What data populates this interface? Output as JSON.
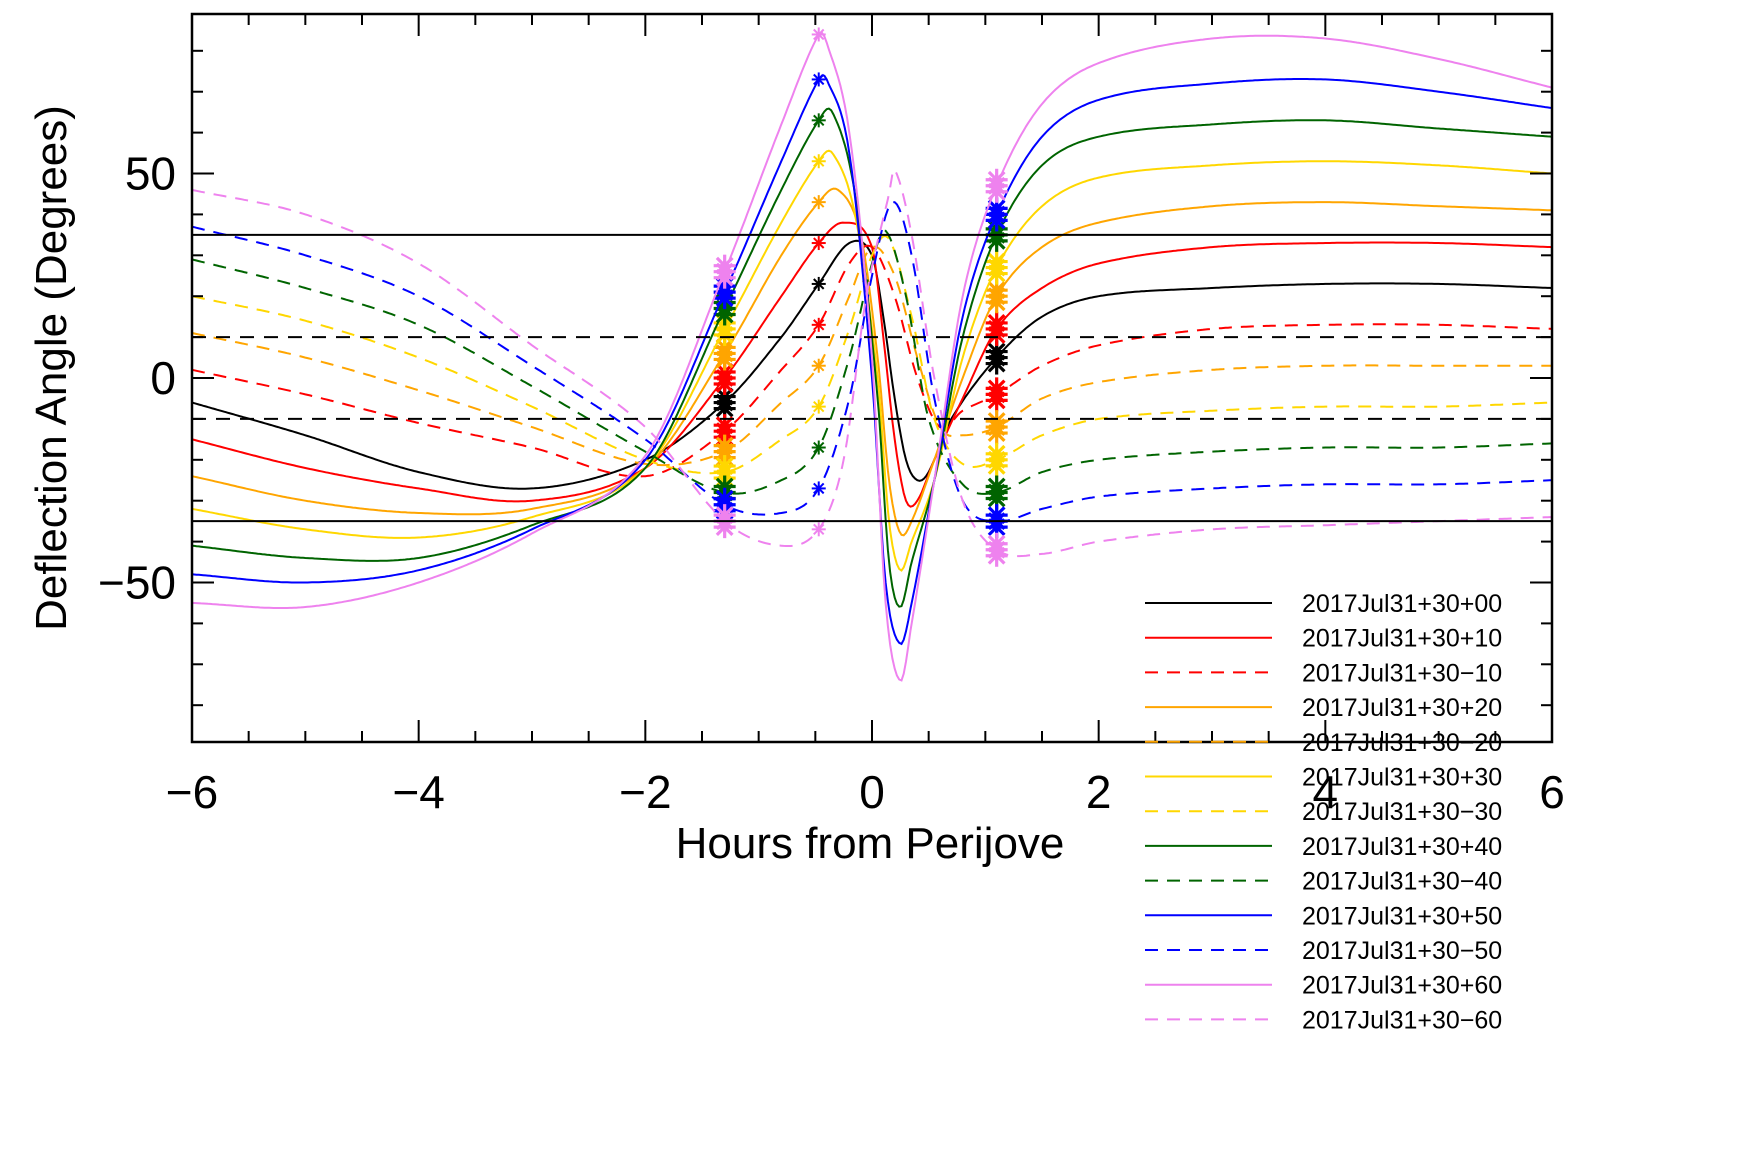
{
  "chart_data": {
    "type": "line",
    "title": "",
    "xlabel": "Hours from Perijove",
    "ylabel": "Deflection Angle (Degrees)",
    "xlim": [
      -6,
      6
    ],
    "ylim": [
      -89,
      89
    ],
    "xticks": [
      -6,
      -4,
      -2,
      0,
      2,
      4,
      6
    ],
    "xtick_labels": [
      "−6",
      "−4",
      "−2",
      "0",
      "2",
      "4",
      "6"
    ],
    "yticks": [
      -50,
      0,
      50
    ],
    "ytick_labels": [
      "−50",
      "0",
      "50"
    ],
    "grid": false,
    "legend_position": "bottom-right",
    "reference_lines": [
      {
        "y": 35,
        "style": "solid",
        "color": "#000000"
      },
      {
        "y": -35,
        "style": "solid",
        "color": "#000000"
      },
      {
        "y": 10,
        "style": "dashed",
        "color": "#000000"
      },
      {
        "y": -10,
        "style": "dashed",
        "color": "#000000"
      }
    ],
    "marker_times": [
      -1.3,
      -0.47,
      1.1
    ],
    "series": [
      {
        "name": "2017Jul31+30+00",
        "color": "#000000",
        "dash": false,
        "points": [
          [
            -6,
            -6
          ],
          [
            -5,
            -14
          ],
          [
            -4,
            -23
          ],
          [
            -3,
            -27
          ],
          [
            -2,
            -20
          ],
          [
            -1.3,
            -6
          ],
          [
            -0.8,
            10
          ],
          [
            -0.47,
            23
          ],
          [
            -0.2,
            33
          ],
          [
            0,
            30
          ],
          [
            0.1,
            15
          ],
          [
            0.2,
            -5
          ],
          [
            0.3,
            -20
          ],
          [
            0.4,
            -25
          ],
          [
            0.5,
            -23
          ],
          [
            0.7,
            -10
          ],
          [
            1.1,
            5
          ],
          [
            1.5,
            15
          ],
          [
            2,
            20
          ],
          [
            3,
            22
          ],
          [
            4,
            23
          ],
          [
            5,
            23
          ],
          [
            6,
            22
          ]
        ]
      },
      {
        "name": "2017Jul31+30+10",
        "color": "#ff0000",
        "dash": false,
        "points": [
          [
            -6,
            -15
          ],
          [
            -5,
            -22
          ],
          [
            -4,
            -27
          ],
          [
            -3,
            -30
          ],
          [
            -2,
            -22
          ],
          [
            -1.3,
            0
          ],
          [
            -0.8,
            20
          ],
          [
            -0.47,
            33
          ],
          [
            -0.25,
            38
          ],
          [
            0,
            32
          ],
          [
            0.1,
            10
          ],
          [
            0.2,
            -15
          ],
          [
            0.3,
            -30
          ],
          [
            0.4,
            -30
          ],
          [
            0.55,
            -20
          ],
          [
            0.8,
            -5
          ],
          [
            1.1,
            12
          ],
          [
            1.5,
            22
          ],
          [
            2,
            28
          ],
          [
            3,
            32
          ],
          [
            4,
            33
          ],
          [
            5,
            33
          ],
          [
            6,
            32
          ]
        ]
      },
      {
        "name": "2017Jul31+30−10",
        "color": "#ff0000",
        "dash": true,
        "points": [
          [
            -6,
            2
          ],
          [
            -5,
            -4
          ],
          [
            -4,
            -11
          ],
          [
            -3,
            -17
          ],
          [
            -2,
            -24
          ],
          [
            -1.3,
            -13
          ],
          [
            -0.8,
            2
          ],
          [
            -0.47,
            13
          ],
          [
            -0.2,
            28
          ],
          [
            0,
            32
          ],
          [
            0.2,
            20
          ],
          [
            0.4,
            0
          ],
          [
            0.6,
            -12
          ],
          [
            0.8,
            -8
          ],
          [
            1.1,
            -4
          ],
          [
            1.5,
            3
          ],
          [
            2,
            8
          ],
          [
            3,
            12
          ],
          [
            4,
            13
          ],
          [
            5,
            13
          ],
          [
            6,
            12
          ]
        ]
      },
      {
        "name": "2017Jul31+30+20",
        "color": "#ffa500",
        "dash": false,
        "points": [
          [
            -6,
            -24
          ],
          [
            -5,
            -30
          ],
          [
            -4,
            -33
          ],
          [
            -3,
            -32
          ],
          [
            -2,
            -22
          ],
          [
            -1.3,
            6
          ],
          [
            -0.8,
            30
          ],
          [
            -0.47,
            43
          ],
          [
            -0.3,
            46
          ],
          [
            -0.1,
            35
          ],
          [
            0.05,
            5
          ],
          [
            0.15,
            -25
          ],
          [
            0.25,
            -38
          ],
          [
            0.35,
            -35
          ],
          [
            0.55,
            -20
          ],
          [
            0.8,
            0
          ],
          [
            1.1,
            20
          ],
          [
            1.5,
            32
          ],
          [
            2,
            38
          ],
          [
            3,
            42
          ],
          [
            4,
            43
          ],
          [
            5,
            42
          ],
          [
            6,
            41
          ]
        ]
      },
      {
        "name": "2017Jul31+30−20",
        "color": "#ffa500",
        "dash": true,
        "points": [
          [
            -6,
            11
          ],
          [
            -5,
            5
          ],
          [
            -4,
            -3
          ],
          [
            -3,
            -12
          ],
          [
            -2,
            -21
          ],
          [
            -1.3,
            -18
          ],
          [
            -0.8,
            -6
          ],
          [
            -0.47,
            3
          ],
          [
            -0.2,
            20
          ],
          [
            0,
            32
          ],
          [
            0.2,
            25
          ],
          [
            0.4,
            5
          ],
          [
            0.6,
            -12
          ],
          [
            0.8,
            -14
          ],
          [
            1.1,
            -12
          ],
          [
            1.5,
            -5
          ],
          [
            2,
            -1
          ],
          [
            3,
            2
          ],
          [
            4,
            3
          ],
          [
            5,
            3
          ],
          [
            6,
            3
          ]
        ]
      },
      {
        "name": "2017Jul31+30+30",
        "color": "#ffd700",
        "dash": false,
        "points": [
          [
            -6,
            -32
          ],
          [
            -5,
            -37
          ],
          [
            -4,
            -39
          ],
          [
            -3,
            -34
          ],
          [
            -2,
            -22
          ],
          [
            -1.3,
            12
          ],
          [
            -0.8,
            38
          ],
          [
            -0.47,
            53
          ],
          [
            -0.35,
            55
          ],
          [
            -0.15,
            40
          ],
          [
            0.05,
            0
          ],
          [
            0.15,
            -35
          ],
          [
            0.25,
            -47
          ],
          [
            0.35,
            -40
          ],
          [
            0.55,
            -25
          ],
          [
            0.8,
            5
          ],
          [
            1.1,
            27
          ],
          [
            1.5,
            42
          ],
          [
            2,
            49
          ],
          [
            3,
            52
          ],
          [
            4,
            53
          ],
          [
            5,
            52
          ],
          [
            6,
            50
          ]
        ]
      },
      {
        "name": "2017Jul31+30−30",
        "color": "#ffd700",
        "dash": true,
        "points": [
          [
            -6,
            20
          ],
          [
            -5,
            14
          ],
          [
            -4,
            5
          ],
          [
            -3,
            -7
          ],
          [
            -2,
            -20
          ],
          [
            -1.3,
            -23
          ],
          [
            -0.8,
            -15
          ],
          [
            -0.47,
            -7
          ],
          [
            -0.2,
            12
          ],
          [
            0,
            30
          ],
          [
            0.15,
            34
          ],
          [
            0.35,
            15
          ],
          [
            0.55,
            -10
          ],
          [
            0.8,
            -21
          ],
          [
            1.1,
            -20
          ],
          [
            1.5,
            -14
          ],
          [
            2,
            -10
          ],
          [
            3,
            -8
          ],
          [
            4,
            -7
          ],
          [
            5,
            -7
          ],
          [
            6,
            -6
          ]
        ]
      },
      {
        "name": "2017Jul31+30+40",
        "color": "#006400",
        "dash": false,
        "points": [
          [
            -6,
            -41
          ],
          [
            -5,
            -44
          ],
          [
            -4,
            -44
          ],
          [
            -3,
            -36
          ],
          [
            -2,
            -22
          ],
          [
            -1.3,
            17
          ],
          [
            -0.8,
            46
          ],
          [
            -0.47,
            63
          ],
          [
            -0.35,
            65
          ],
          [
            -0.15,
            45
          ],
          [
            0.05,
            -5
          ],
          [
            0.15,
            -45
          ],
          [
            0.25,
            -56
          ],
          [
            0.35,
            -45
          ],
          [
            0.55,
            -25
          ],
          [
            0.8,
            10
          ],
          [
            1.1,
            35
          ],
          [
            1.5,
            52
          ],
          [
            2,
            59
          ],
          [
            3,
            62
          ],
          [
            4,
            63
          ],
          [
            5,
            61
          ],
          [
            6,
            59
          ]
        ]
      },
      {
        "name": "2017Jul31+30−40",
        "color": "#006400",
        "dash": true,
        "points": [
          [
            -6,
            29
          ],
          [
            -5,
            22
          ],
          [
            -4,
            13
          ],
          [
            -3,
            -2
          ],
          [
            -2,
            -18
          ],
          [
            -1.3,
            -28
          ],
          [
            -0.8,
            -25
          ],
          [
            -0.47,
            -17
          ],
          [
            -0.2,
            5
          ],
          [
            0,
            28
          ],
          [
            0.12,
            36
          ],
          [
            0.3,
            20
          ],
          [
            0.5,
            -10
          ],
          [
            0.8,
            -26
          ],
          [
            1.1,
            -28
          ],
          [
            1.5,
            -23
          ],
          [
            2,
            -20
          ],
          [
            3,
            -18
          ],
          [
            4,
            -17
          ],
          [
            5,
            -17
          ],
          [
            6,
            -16
          ]
        ]
      },
      {
        "name": "2017Jul31+30+50",
        "color": "#0000ff",
        "dash": false,
        "points": [
          [
            -6,
            -48
          ],
          [
            -5,
            -50
          ],
          [
            -4,
            -47
          ],
          [
            -3,
            -37
          ],
          [
            -2,
            -20
          ],
          [
            -1.3,
            21
          ],
          [
            -0.8,
            53
          ],
          [
            -0.47,
            73
          ],
          [
            -0.4,
            73
          ],
          [
            -0.2,
            55
          ],
          [
            0,
            0
          ],
          [
            0.12,
            -50
          ],
          [
            0.25,
            -65
          ],
          [
            0.35,
            -55
          ],
          [
            0.55,
            -25
          ],
          [
            0.8,
            15
          ],
          [
            1.1,
            40
          ],
          [
            1.5,
            59
          ],
          [
            2,
            68
          ],
          [
            3,
            72
          ],
          [
            4,
            73
          ],
          [
            5,
            70
          ],
          [
            6,
            66
          ]
        ]
      },
      {
        "name": "2017Jul31+30−50",
        "color": "#0000ff",
        "dash": true,
        "points": [
          [
            -6,
            37
          ],
          [
            -5,
            30
          ],
          [
            -4,
            20
          ],
          [
            -3,
            3
          ],
          [
            -2,
            -15
          ],
          [
            -1.3,
            -31
          ],
          [
            -0.8,
            -33
          ],
          [
            -0.47,
            -27
          ],
          [
            -0.2,
            -5
          ],
          [
            0,
            25
          ],
          [
            0.18,
            43
          ],
          [
            0.35,
            30
          ],
          [
            0.55,
            -5
          ],
          [
            0.8,
            -30
          ],
          [
            1.1,
            -35
          ],
          [
            1.5,
            -32
          ],
          [
            2,
            -29
          ],
          [
            3,
            -27
          ],
          [
            4,
            -26
          ],
          [
            5,
            -26
          ],
          [
            6,
            -25
          ]
        ]
      },
      {
        "name": "2017Jul31+30+60",
        "color": "#ee82ee",
        "dash": false,
        "points": [
          [
            -6,
            -55
          ],
          [
            -5,
            -56
          ],
          [
            -4,
            -50
          ],
          [
            -3,
            -38
          ],
          [
            -2,
            -19
          ],
          [
            -1.3,
            26
          ],
          [
            -0.8,
            62
          ],
          [
            -0.47,
            84
          ],
          [
            -0.4,
            82
          ],
          [
            -0.2,
            60
          ],
          [
            0,
            5
          ],
          [
            0.12,
            -55
          ],
          [
            0.25,
            -74
          ],
          [
            0.35,
            -60
          ],
          [
            0.55,
            -25
          ],
          [
            0.8,
            20
          ],
          [
            1.1,
            47
          ],
          [
            1.5,
            67
          ],
          [
            2,
            77
          ],
          [
            3,
            83
          ],
          [
            4,
            83
          ],
          [
            5,
            78
          ],
          [
            6,
            71
          ]
        ]
      },
      {
        "name": "2017Jul31+30−60",
        "color": "#ee82ee",
        "dash": true,
        "points": [
          [
            -6,
            46
          ],
          [
            -5,
            40
          ],
          [
            -4,
            28
          ],
          [
            -3,
            8
          ],
          [
            -2,
            -12
          ],
          [
            -1.3,
            -35
          ],
          [
            -0.8,
            -41
          ],
          [
            -0.47,
            -37
          ],
          [
            -0.25,
            -20
          ],
          [
            -0.05,
            20
          ],
          [
            0.15,
            45
          ],
          [
            0.2,
            51
          ],
          [
            0.35,
            35
          ],
          [
            0.55,
            0
          ],
          [
            0.8,
            -30
          ],
          [
            1.1,
            -42
          ],
          [
            1.5,
            -43
          ],
          [
            2,
            -40
          ],
          [
            3,
            -37
          ],
          [
            4,
            -36
          ],
          [
            5,
            -35
          ],
          [
            6,
            -34
          ]
        ]
      }
    ]
  }
}
